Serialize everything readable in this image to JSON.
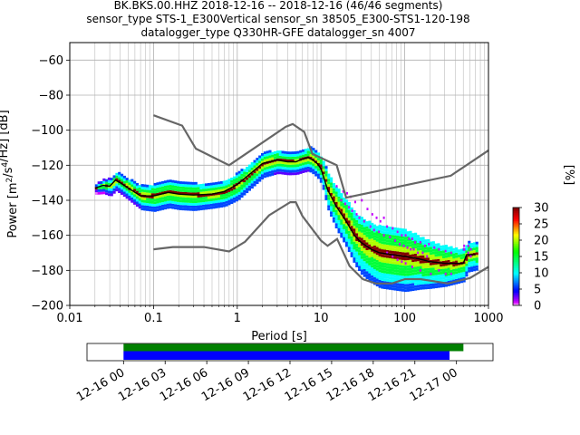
{
  "title_lines": [
    "BK.BKS.00.HHZ   2018-12-16 -- 2018-12-16  (46/46 segments)",
    "sensor_type STS-1_E300Vertical sensor_sn 38505_E300-STS1-120-198",
    "datalogger_type Q330HR-GFE datalogger_sn 4007"
  ],
  "chart_data": [
    {
      "type": "heatmap",
      "xlabel": "Period [s]",
      "ylabel": "Power [m²/s⁴/Hz] [dB]",
      "x_scale": "log",
      "xlim": [
        0.01,
        1000
      ],
      "ylim": [
        -200,
        -50
      ],
      "x_ticks": [
        0.01,
        0.1,
        1,
        10,
        100,
        1000
      ],
      "x_tick_labels": [
        "0.01",
        "0.1",
        "1",
        "10",
        "100",
        "1000"
      ],
      "y_ticks": [
        -200,
        -180,
        -160,
        -140,
        -120,
        -100,
        -80,
        -60
      ],
      "y_tick_labels": [
        "−200",
        "−180",
        "−160",
        "−140",
        "−120",
        "−100",
        "−80",
        "−60"
      ],
      "grid": true,
      "colorbar": {
        "label": "[%]",
        "range": [
          0,
          30
        ],
        "ticks": [
          0,
          5,
          10,
          15,
          20,
          25,
          30
        ],
        "tick_labels": [
          "0",
          "5",
          "10",
          "15",
          "20",
          "25",
          "30"
        ],
        "colormap": "pqlx"
      },
      "noise_model_color": "#666666",
      "mean_color": "#000000",
      "high_noise_model": [
        [
          0.1,
          -91.5
        ],
        [
          0.22,
          -97.4
        ],
        [
          0.32,
          -110.5
        ],
        [
          0.8,
          -120
        ],
        [
          3.8,
          -98
        ],
        [
          4.6,
          -96.5
        ],
        [
          6.3,
          -101
        ],
        [
          7.9,
          -113.5
        ],
        [
          15.4,
          -120
        ],
        [
          20,
          -138.5
        ],
        [
          354.8,
          -126
        ],
        [
          1000,
          -111.5
        ]
      ],
      "low_noise_model": [
        [
          0.1,
          -168
        ],
        [
          0.17,
          -166.7
        ],
        [
          0.4,
          -166.7
        ],
        [
          0.8,
          -169.2
        ],
        [
          1.24,
          -163.7
        ],
        [
          2.4,
          -148.6
        ],
        [
          4.3,
          -141.1
        ],
        [
          5,
          -141.1
        ],
        [
          6,
          -149
        ],
        [
          10,
          -163
        ],
        [
          12,
          -166
        ],
        [
          15.6,
          -162.1
        ],
        [
          21.9,
          -177.5
        ],
        [
          31.6,
          -185
        ],
        [
          45,
          -187.5
        ],
        [
          70,
          -187.5
        ],
        [
          101,
          -185
        ],
        [
          154,
          -185
        ],
        [
          328,
          -187.5
        ],
        [
          600,
          -184.4
        ],
        [
          1000,
          -178
        ]
      ],
      "mean_psd": [
        [
          0.02,
          -133
        ],
        [
          0.025,
          -131.5
        ],
        [
          0.03,
          -132
        ],
        [
          0.035,
          -128.5
        ],
        [
          0.04,
          -130
        ],
        [
          0.05,
          -133
        ],
        [
          0.07,
          -137.5
        ],
        [
          0.1,
          -137.5
        ],
        [
          0.15,
          -135.5
        ],
        [
          0.2,
          -136.5
        ],
        [
          0.3,
          -137
        ],
        [
          0.5,
          -136.5
        ],
        [
          0.7,
          -135
        ],
        [
          1,
          -131
        ],
        [
          1.5,
          -124
        ],
        [
          2,
          -119
        ],
        [
          3,
          -117
        ],
        [
          4,
          -118
        ],
        [
          5,
          -118
        ],
        [
          6,
          -116.5
        ],
        [
          7,
          -115.5
        ],
        [
          8,
          -117
        ],
        [
          9,
          -119
        ],
        [
          10,
          -122
        ],
        [
          12,
          -134
        ],
        [
          15,
          -143
        ],
        [
          20,
          -152
        ],
        [
          25,
          -160
        ],
        [
          30,
          -164
        ],
        [
          40,
          -168
        ],
        [
          50,
          -170
        ],
        [
          70,
          -171
        ],
        [
          100,
          -172
        ],
        [
          150,
          -173.5
        ],
        [
          200,
          -175
        ],
        [
          300,
          -176
        ],
        [
          400,
          -176
        ],
        [
          500,
          -176
        ],
        [
          550,
          -171
        ],
        [
          700,
          -171
        ]
      ],
      "percent_levels": [
        [
          -1,
          30
        ],
        [
          0.5,
          20
        ],
        [
          1,
          15
        ],
        [
          1.5,
          10
        ],
        [
          2.2,
          6
        ],
        [
          3,
          3
        ],
        [
          4,
          1
        ]
      ],
      "spread_profile": [
        [
          0.02,
          0.7
        ],
        [
          0.03,
          2
        ],
        [
          0.1,
          4
        ],
        [
          0.3,
          4
        ],
        [
          0.5,
          3.5
        ],
        [
          1,
          4
        ],
        [
          2,
          3.5
        ],
        [
          5,
          3
        ],
        [
          8,
          3.5
        ],
        [
          10,
          4
        ],
        [
          12,
          6
        ],
        [
          15,
          7
        ],
        [
          20,
          8
        ],
        [
          30,
          10
        ],
        [
          50,
          11
        ],
        [
          100,
          11
        ],
        [
          200,
          8
        ],
        [
          500,
          5
        ],
        [
          700,
          4
        ]
      ],
      "outliers": [
        [
          15,
          -132
        ],
        [
          18,
          -135
        ],
        [
          20,
          -136
        ],
        [
          22,
          -138
        ],
        [
          25,
          -141
        ],
        [
          30,
          -140
        ],
        [
          35,
          -145
        ],
        [
          40,
          -148
        ],
        [
          45,
          -150
        ],
        [
          50,
          -152
        ],
        [
          55,
          -150
        ],
        [
          60,
          -155
        ],
        [
          70,
          -156
        ],
        [
          80,
          -158
        ],
        [
          90,
          -160
        ],
        [
          100,
          -160
        ],
        [
          110,
          -162
        ],
        [
          120,
          -162
        ],
        [
          130,
          -164
        ],
        [
          150,
          -164
        ],
        [
          170,
          -166
        ],
        [
          190,
          -165
        ],
        [
          220,
          -167
        ],
        [
          250,
          -168
        ],
        [
          300,
          -169
        ],
        [
          350,
          -170
        ],
        [
          28,
          -150
        ],
        [
          32,
          -152
        ],
        [
          38,
          -155
        ],
        [
          42,
          -157
        ],
        [
          48,
          -158
        ],
        [
          55,
          -160
        ],
        [
          65,
          -161
        ],
        [
          75,
          -163
        ],
        [
          85,
          -165
        ],
        [
          95,
          -166
        ],
        [
          105,
          -167
        ],
        [
          115,
          -168
        ],
        [
          125,
          -168
        ],
        [
          140,
          -170
        ],
        [
          160,
          -170
        ],
        [
          180,
          -172
        ],
        [
          500,
          -166
        ],
        [
          560,
          -166
        ],
        [
          600,
          -168
        ],
        [
          500,
          -168
        ],
        [
          560,
          -170
        ],
        [
          600,
          -172
        ],
        [
          17,
          -140
        ],
        [
          19,
          -142
        ],
        [
          21,
          -144
        ],
        [
          23,
          -146
        ],
        [
          26,
          -148
        ],
        [
          100,
          -176
        ],
        [
          120,
          -178
        ],
        [
          150,
          -180
        ],
        [
          200,
          -182
        ],
        [
          250,
          -180
        ],
        [
          300,
          -182
        ],
        [
          350,
          -182
        ],
        [
          60,
          -170
        ],
        [
          70,
          -172
        ],
        [
          80,
          -174
        ],
        [
          90,
          -175
        ]
      ]
    },
    {
      "type": "bar",
      "xlabel": "",
      "x_tick_labels": [
        "12-16 00",
        "12-16 03",
        "12-16 06",
        "12-16 09",
        "12-16 12",
        "12-16 15",
        "12-16 18",
        "12-16 21",
        "12-17 00"
      ],
      "xlim": [
        "2018-12-15 21:22",
        "2018-12-17 02:38"
      ],
      "bars": [
        {
          "color": "#008000",
          "start": "2018-12-16 00:00",
          "end": "2018-12-17 00:30"
        },
        {
          "color": "#0000ff",
          "start": "2018-12-16 00:00",
          "end": "2018-12-16 23:30"
        }
      ]
    }
  ]
}
